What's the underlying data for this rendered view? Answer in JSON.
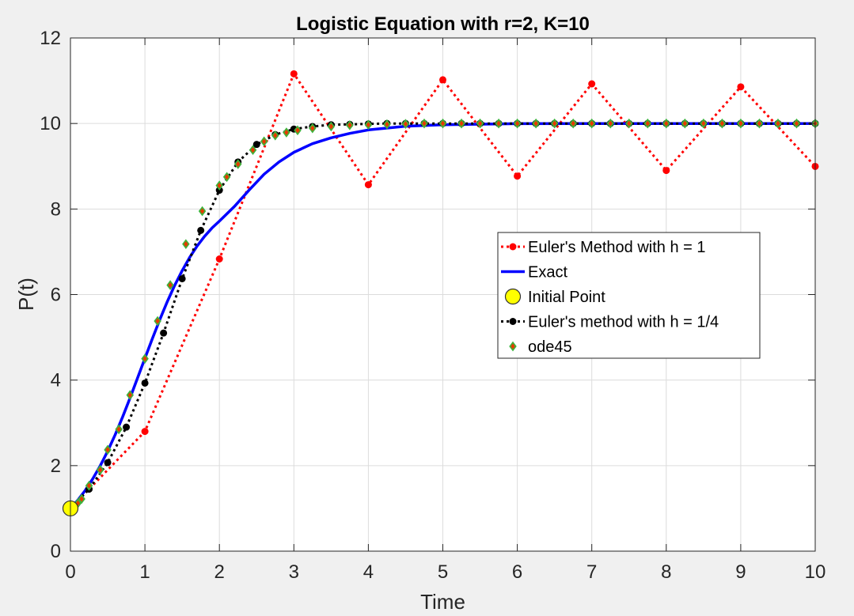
{
  "chart_data": {
    "type": "line",
    "title": "Logistic Equation with r=2, K=10",
    "xlabel": "Time",
    "ylabel": "P(t)",
    "xlim": [
      0,
      10
    ],
    "ylim": [
      0,
      12
    ],
    "xticks": [
      0,
      1,
      2,
      3,
      4,
      5,
      6,
      7,
      8,
      9,
      10
    ],
    "yticks": [
      0,
      2,
      4,
      6,
      8,
      10,
      12
    ],
    "grid": true,
    "legend_position": "right-center",
    "colors": {
      "background": "#f0f0f0",
      "axes": "#ffffff",
      "grid": "#dcdcdc",
      "euler_h1": "#ff0000",
      "exact": "#0000ff",
      "initial_point": "#ffff00",
      "euler_h025": "#000000",
      "ode45_fill": "#e53b00",
      "ode45_edge": "#3cb43c"
    },
    "series": [
      {
        "name": "Euler's Method with h = 1",
        "style": "dotted-line-circle-markers",
        "color": "#ff0000",
        "x": [
          0,
          1,
          2,
          3,
          4,
          5,
          6,
          7,
          8,
          9,
          10
        ],
        "y": [
          1.0,
          2.8,
          6.832,
          11.162,
          8.568,
          11.022,
          8.77,
          10.927,
          8.901,
          10.857,
          8.996
        ]
      },
      {
        "name": "Exact",
        "style": "solid-line",
        "color": "#0000ff",
        "x": [
          0,
          0.1,
          0.2,
          0.3,
          0.4,
          0.5,
          0.6,
          0.7,
          0.8,
          0.9,
          1.0,
          1.1,
          1.2,
          1.3,
          1.4,
          1.5,
          1.6,
          1.7,
          1.8,
          1.9,
          2.0,
          2.2,
          2.4,
          2.6,
          2.8,
          3.0,
          3.25,
          3.5,
          3.75,
          4.0,
          4.5,
          5.0,
          6.0,
          7.0,
          8.0,
          9.0,
          10.0
        ],
        "y": [
          1.0,
          1.195,
          1.424,
          1.691,
          1.995,
          2.34,
          2.722,
          3.138,
          3.582,
          4.046,
          4.509,
          4.969,
          5.414,
          5.831,
          6.215,
          6.561,
          6.867,
          7.133,
          7.361,
          7.555,
          7.717,
          8.056,
          8.444,
          8.815,
          9.101,
          9.327,
          9.528,
          9.664,
          9.768,
          9.849,
          9.937,
          9.97,
          9.995,
          9.999,
          10.0,
          10.0,
          10.0
        ]
      },
      {
        "name": "Initial Point",
        "style": "circle-marker",
        "color": "#ffff00",
        "x": [
          0
        ],
        "y": [
          1
        ]
      },
      {
        "name": "Euler's method with h = 1/4",
        "style": "dotted-line-circle-markers",
        "color": "#000000",
        "x": [
          0,
          0.25,
          0.5,
          0.75,
          1.0,
          1.25,
          1.5,
          1.75,
          2.0,
          2.25,
          2.5,
          2.75,
          3.0,
          3.25,
          3.5,
          3.75,
          4.0,
          4.25,
          4.5,
          4.75,
          5.0,
          5.25,
          5.5,
          5.75,
          6.0,
          6.25,
          6.5,
          6.75,
          7.0,
          7.25,
          7.5,
          7.75,
          8.0,
          8.25,
          8.5,
          8.75,
          9.0,
          9.25,
          9.5,
          9.75,
          10.0
        ],
        "y": [
          1.0,
          1.45,
          2.07,
          2.9,
          3.93,
          5.1,
          6.37,
          7.5,
          8.44,
          9.1,
          9.51,
          9.74,
          9.87,
          9.93,
          9.97,
          9.98,
          9.99,
          10.0,
          10.0,
          10.0,
          10.0,
          10.0,
          10.0,
          10.0,
          10.0,
          10.0,
          10.0,
          10.0,
          10.0,
          10.0,
          10.0,
          10.0,
          10.0,
          10.0,
          10.0,
          10.0,
          10.0,
          10.0,
          10.0,
          10.0,
          10.0
        ]
      },
      {
        "name": "ode45",
        "style": "diamond-markers",
        "color": "#e53b00",
        "x": [
          0,
          0.05,
          0.1,
          0.15,
          0.25,
          0.4,
          0.5,
          0.65,
          0.8,
          1.0,
          1.17,
          1.34,
          1.55,
          1.77,
          2.0,
          2.1,
          2.25,
          2.45,
          2.6,
          2.75,
          2.9,
          3.05,
          3.25,
          3.5,
          3.75,
          4.0,
          4.25,
          4.5,
          4.75,
          5.0,
          5.25,
          5.5,
          5.75,
          6.0,
          6.25,
          6.5,
          6.75,
          7.0,
          7.25,
          7.5,
          7.75,
          8.0,
          8.25,
          8.5,
          8.75,
          9.0,
          9.25,
          9.5,
          9.75,
          10.0
        ],
        "y": [
          1.0,
          1.05,
          1.12,
          1.22,
          1.53,
          1.9,
          2.37,
          2.85,
          3.65,
          4.5,
          5.38,
          6.22,
          7.18,
          7.95,
          8.55,
          8.75,
          9.05,
          9.38,
          9.58,
          9.72,
          9.79,
          9.84,
          9.89,
          9.93,
          9.96,
          9.97,
          9.98,
          9.99,
          10.0,
          10.0,
          10.0,
          10.0,
          10.0,
          10.0,
          10.0,
          10.0,
          10.0,
          10.0,
          10.0,
          10.0,
          10.0,
          10.0,
          10.0,
          10.0,
          10.0,
          10.0,
          10.0,
          10.0,
          10.0,
          10.0
        ]
      }
    ]
  }
}
